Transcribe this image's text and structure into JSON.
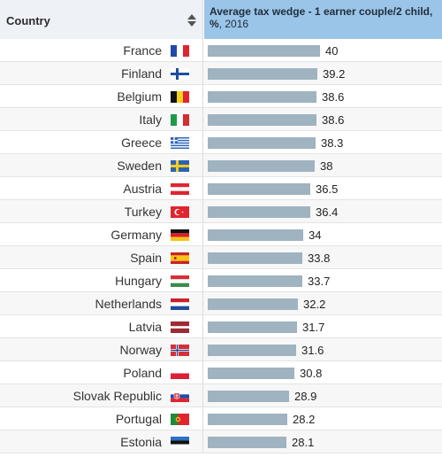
{
  "header": {
    "country_label": "Country",
    "metric_title": "Average tax wedge - 1 earner couple/2 child,",
    "metric_unit": "%",
    "metric_year": ", 2016"
  },
  "colors": {
    "header_country_bg": "#eef2f7",
    "header_metric_bg": "#9bc5e8",
    "bar": "#9fb3c1"
  },
  "chart_data": {
    "type": "bar",
    "orientation": "horizontal",
    "title": "Average tax wedge - 1 earner couple/2 child, %, 2016",
    "categories": [
      "France",
      "Finland",
      "Belgium",
      "Italy",
      "Greece",
      "Sweden",
      "Austria",
      "Turkey",
      "Germany",
      "Spain",
      "Hungary",
      "Netherlands",
      "Latvia",
      "Norway",
      "Poland",
      "Slovak Republic",
      "Portugal",
      "Estonia"
    ],
    "values": [
      40,
      39.2,
      38.6,
      38.6,
      38.3,
      38,
      36.5,
      36.4,
      34,
      33.8,
      33.7,
      32.2,
      31.7,
      31.6,
      30.8,
      28.9,
      28.2,
      28.1
    ],
    "flag_icons": [
      "flag-france-icon",
      "flag-finland-icon",
      "flag-belgium-icon",
      "flag-italy-icon",
      "flag-greece-icon",
      "flag-sweden-icon",
      "flag-austria-icon",
      "flag-turkey-icon",
      "flag-germany-icon",
      "flag-spain-icon",
      "flag-hungary-icon",
      "flag-netherlands-icon",
      "flag-latvia-icon",
      "flag-norway-icon",
      "flag-poland-icon",
      "flag-slovakia-icon",
      "flag-portugal-icon",
      "flag-estonia-icon"
    ],
    "xlim": [
      0,
      40
    ],
    "grid": false,
    "legend": "none"
  }
}
